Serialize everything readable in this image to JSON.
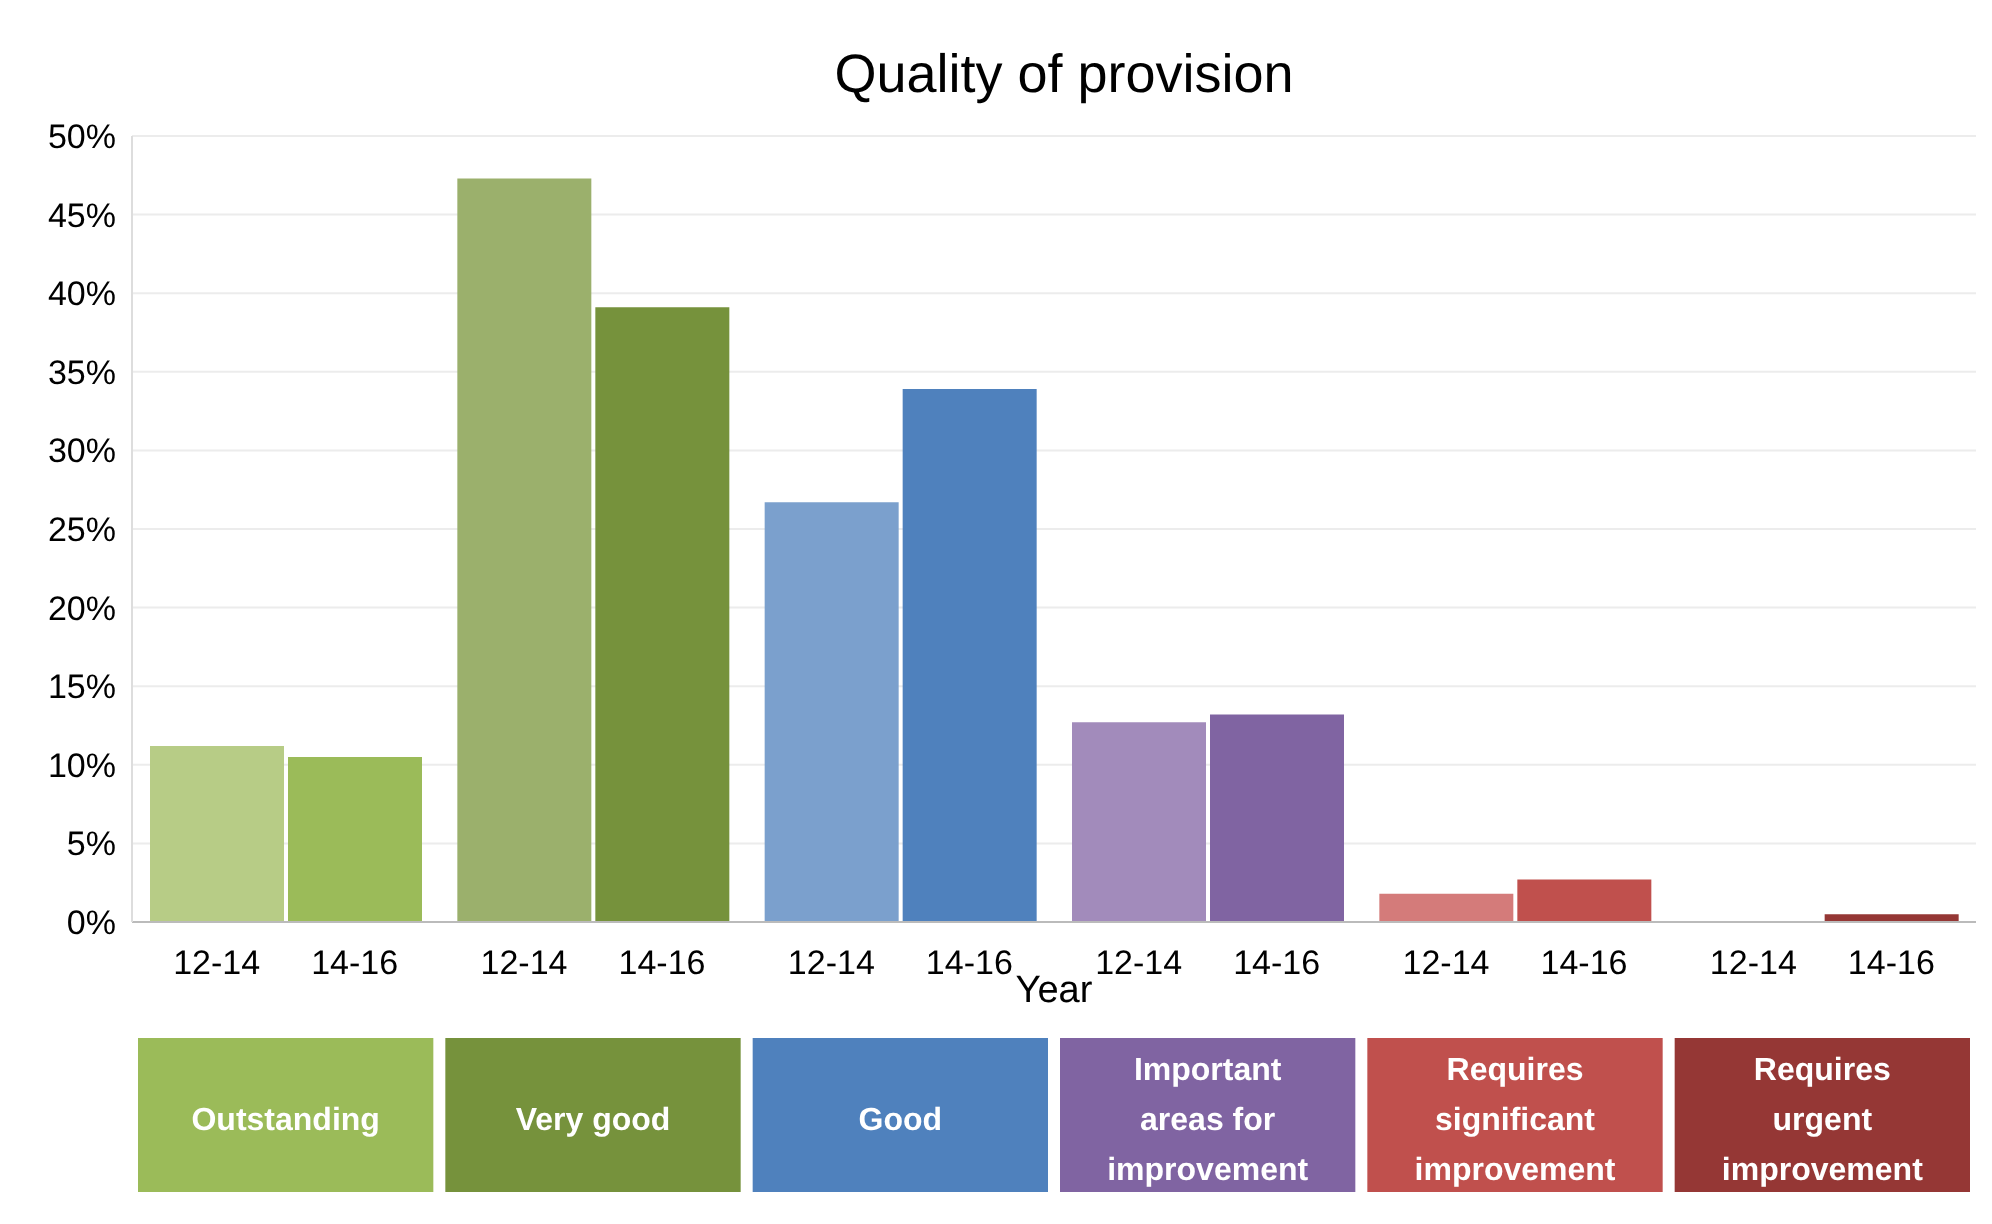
{
  "chart_data": {
    "type": "bar",
    "title": "Quality of provision",
    "xlabel": "Year",
    "categories": [
      "Outstanding",
      "Very good",
      "Good",
      "Important areas for improvement",
      "Requires significant improvement",
      "Requires urgent improvement"
    ],
    "series": [
      {
        "name": "12-14",
        "colors": [
          "#b7cc86",
          "#9bb06c",
          "#7ba0cd",
          "#a28bbb",
          "#d47b7a",
          "#b05553"
        ],
        "values": [
          11.2,
          47.3,
          26.7,
          12.7,
          1.8,
          0
        ]
      },
      {
        "name": "14-16",
        "colors": [
          "#9bbb59",
          "#76923c",
          "#4f81bd",
          "#8064a2",
          "#c0504d",
          "#953735"
        ],
        "values": [
          10.5,
          39.1,
          33.9,
          13.2,
          2.7,
          0.5
        ]
      }
    ],
    "ylim": [
      0,
      50
    ],
    "yticks": [
      {
        "value": 0,
        "label": "0%"
      },
      {
        "value": 5,
        "label": "5%"
      },
      {
        "value": 10,
        "label": "10%"
      },
      {
        "value": 15,
        "label": "15%"
      },
      {
        "value": 20,
        "label": "20%"
      },
      {
        "value": 25,
        "label": "25%"
      },
      {
        "value": 30,
        "label": "30%"
      },
      {
        "value": 35,
        "label": "35%"
      },
      {
        "value": 40,
        "label": "40%"
      },
      {
        "value": 45,
        "label": "45%"
      },
      {
        "value": 50,
        "label": "50%"
      }
    ],
    "grid": "y"
  }
}
